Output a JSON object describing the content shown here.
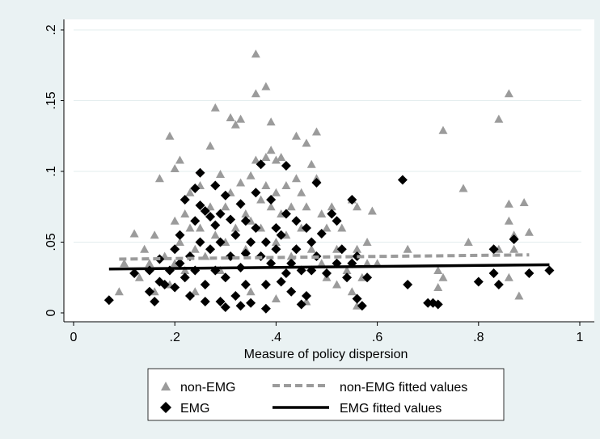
{
  "chart_data": {
    "type": "scatter",
    "xlabel": "Measure of policy dispersion",
    "ylabel": "",
    "xlim": [
      0,
      1
    ],
    "ylim": [
      0,
      0.2
    ],
    "x_ticks": [
      {
        "value": 0,
        "label": "0"
      },
      {
        "value": 0.2,
        "label": ".2"
      },
      {
        "value": 0.4,
        "label": ".4"
      },
      {
        "value": 0.6,
        "label": ".6"
      },
      {
        "value": 0.8,
        "label": ".8"
      },
      {
        "value": 1,
        "label": "1"
      }
    ],
    "y_ticks": [
      {
        "value": 0,
        "label": "0"
      },
      {
        "value": 0.05,
        "label": ".05"
      },
      {
        "value": 0.1,
        "label": ".1"
      },
      {
        "value": 0.15,
        "label": ".15"
      },
      {
        "value": 0.2,
        "label": ".2"
      }
    ],
    "grid": "horizontal",
    "legend_position": "bottom",
    "colors": {
      "non_emg": "#9b9b9b",
      "emg": "#000000",
      "plot_bg": "#ffffff",
      "page_bg": "#eaf2f3",
      "grid": "#e3ecee"
    },
    "series": [
      {
        "name": "non-EMG",
        "kind": "points",
        "marker": "triangle",
        "points": [
          [
            0.1,
            0.035
          ],
          [
            0.09,
            0.015
          ],
          [
            0.12,
            0.056
          ],
          [
            0.13,
            0.025
          ],
          [
            0.14,
            0.045
          ],
          [
            0.15,
            0.035
          ],
          [
            0.16,
            0.055
          ],
          [
            0.16,
            0.015
          ],
          [
            0.17,
            0.095
          ],
          [
            0.18,
            0.04
          ],
          [
            0.19,
            0.125
          ],
          [
            0.19,
            0.02
          ],
          [
            0.2,
            0.065
          ],
          [
            0.2,
            0.102
          ],
          [
            0.2,
            0.035
          ],
          [
            0.21,
            0.108
          ],
          [
            0.21,
            0.05
          ],
          [
            0.22,
            0.07
          ],
          [
            0.22,
            0.03
          ],
          [
            0.23,
            0.06
          ],
          [
            0.23,
            0.085
          ],
          [
            0.24,
            0.045
          ],
          [
            0.24,
            0.015
          ],
          [
            0.25,
            0.09
          ],
          [
            0.25,
            0.06
          ],
          [
            0.26,
            0.04
          ],
          [
            0.27,
            0.118
          ],
          [
            0.27,
            0.075
          ],
          [
            0.28,
            0.145
          ],
          [
            0.28,
            0.055
          ],
          [
            0.29,
            0.098
          ],
          [
            0.29,
            0.03
          ],
          [
            0.3,
            0.075
          ],
          [
            0.3,
            0.05
          ],
          [
            0.31,
            0.138
          ],
          [
            0.31,
            0.085
          ],
          [
            0.32,
            0.06
          ],
          [
            0.32,
            0.133
          ],
          [
            0.33,
            0.137
          ],
          [
            0.33,
            0.092
          ],
          [
            0.34,
            0.07
          ],
          [
            0.34,
            0.045
          ],
          [
            0.35,
            0.097
          ],
          [
            0.35,
            0.065
          ],
          [
            0.36,
            0.155
          ],
          [
            0.36,
            0.183
          ],
          [
            0.36,
            0.108
          ],
          [
            0.37,
            0.08
          ],
          [
            0.37,
            0.06
          ],
          [
            0.38,
            0.16
          ],
          [
            0.38,
            0.11
          ],
          [
            0.38,
            0.09
          ],
          [
            0.39,
            0.135
          ],
          [
            0.39,
            0.115
          ],
          [
            0.39,
            0.075
          ],
          [
            0.4,
            0.108
          ],
          [
            0.4,
            0.085
          ],
          [
            0.4,
            0.05
          ],
          [
            0.41,
            0.11
          ],
          [
            0.41,
            0.07
          ],
          [
            0.42,
            0.09
          ],
          [
            0.42,
            0.055
          ],
          [
            0.43,
            0.075
          ],
          [
            0.43,
            0.04
          ],
          [
            0.44,
            0.125
          ],
          [
            0.44,
            0.095
          ],
          [
            0.45,
            0.085
          ],
          [
            0.45,
            0.06
          ],
          [
            0.46,
            0.12
          ],
          [
            0.46,
            0.075
          ],
          [
            0.47,
            0.105
          ],
          [
            0.47,
            0.045
          ],
          [
            0.48,
            0.128
          ],
          [
            0.48,
            0.095
          ],
          [
            0.49,
            0.07
          ],
          [
            0.49,
            0.035
          ],
          [
            0.5,
            0.06
          ],
          [
            0.5,
            0.025
          ],
          [
            0.51,
            0.075
          ],
          [
            0.52,
            0.045
          ],
          [
            0.52,
            0.02
          ],
          [
            0.53,
            0.06
          ],
          [
            0.54,
            0.03
          ],
          [
            0.55,
            0.08
          ],
          [
            0.55,
            0.015
          ],
          [
            0.56,
            0.075
          ],
          [
            0.56,
            0.045
          ],
          [
            0.57,
            0.025
          ],
          [
            0.58,
            0.05
          ],
          [
            0.58,
            0.035
          ],
          [
            0.59,
            0.072
          ],
          [
            0.6,
            0.035
          ],
          [
            0.66,
            0.045
          ],
          [
            0.72,
            0.03
          ],
          [
            0.72,
            0.018
          ],
          [
            0.73,
            0.129
          ],
          [
            0.73,
            0.025
          ],
          [
            0.77,
            0.088
          ],
          [
            0.78,
            0.05
          ],
          [
            0.84,
            0.137
          ],
          [
            0.84,
            0.045
          ],
          [
            0.86,
            0.155
          ],
          [
            0.86,
            0.065
          ],
          [
            0.86,
            0.077
          ],
          [
            0.86,
            0.025
          ],
          [
            0.87,
            0.055
          ],
          [
            0.87,
            0.045
          ],
          [
            0.88,
            0.012
          ],
          [
            0.89,
            0.078
          ],
          [
            0.9,
            0.057
          ],
          [
            0.56,
            0.005
          ],
          [
            0.4,
            0.01
          ],
          [
            0.35,
            0.015
          ],
          [
            0.46,
            0.008
          ]
        ]
      },
      {
        "name": "EMG",
        "kind": "points",
        "marker": "diamond",
        "points": [
          [
            0.07,
            0.009
          ],
          [
            0.12,
            0.028
          ],
          [
            0.15,
            0.015
          ],
          [
            0.15,
            0.03
          ],
          [
            0.16,
            0.008
          ],
          [
            0.17,
            0.022
          ],
          [
            0.17,
            0.038
          ],
          [
            0.18,
            0.02
          ],
          [
            0.19,
            0.03
          ],
          [
            0.2,
            0.045
          ],
          [
            0.2,
            0.018
          ],
          [
            0.21,
            0.035
          ],
          [
            0.21,
            0.055
          ],
          [
            0.22,
            0.025
          ],
          [
            0.22,
            0.08
          ],
          [
            0.23,
            0.04
          ],
          [
            0.23,
            0.012
          ],
          [
            0.24,
            0.065
          ],
          [
            0.24,
            0.088
          ],
          [
            0.24,
            0.03
          ],
          [
            0.25,
            0.099
          ],
          [
            0.25,
            0.076
          ],
          [
            0.25,
            0.05
          ],
          [
            0.26,
            0.072
          ],
          [
            0.26,
            0.02
          ],
          [
            0.27,
            0.068
          ],
          [
            0.27,
            0.045
          ],
          [
            0.28,
            0.09
          ],
          [
            0.28,
            0.03
          ],
          [
            0.29,
            0.07
          ],
          [
            0.29,
            0.008
          ],
          [
            0.29,
            0.05
          ],
          [
            0.3,
            0.083
          ],
          [
            0.3,
            0.025
          ],
          [
            0.31,
            0.066
          ],
          [
            0.31,
            0.04
          ],
          [
            0.32,
            0.055
          ],
          [
            0.32,
            0.012
          ],
          [
            0.33,
            0.077
          ],
          [
            0.33,
            0.032
          ],
          [
            0.34,
            0.065
          ],
          [
            0.34,
            0.02
          ],
          [
            0.35,
            0.05
          ],
          [
            0.35,
            0.007
          ],
          [
            0.36,
            0.085
          ],
          [
            0.36,
            0.06
          ],
          [
            0.37,
            0.105
          ],
          [
            0.37,
            0.04
          ],
          [
            0.38,
            0.05
          ],
          [
            0.38,
            0.02
          ],
          [
            0.39,
            0.08
          ],
          [
            0.39,
            0.035
          ],
          [
            0.4,
            0.06
          ],
          [
            0.4,
            0.045
          ],
          [
            0.41,
            0.022
          ],
          [
            0.41,
            0.055
          ],
          [
            0.42,
            0.104
          ],
          [
            0.42,
            0.07
          ],
          [
            0.43,
            0.035
          ],
          [
            0.43,
            0.015
          ],
          [
            0.44,
            0.065
          ],
          [
            0.44,
            0.045
          ],
          [
            0.45,
            0.03
          ],
          [
            0.46,
            0.06
          ],
          [
            0.46,
            0.012
          ],
          [
            0.47,
            0.05
          ],
          [
            0.47,
            0.03
          ],
          [
            0.48,
            0.092
          ],
          [
            0.48,
            0.04
          ],
          [
            0.49,
            0.056
          ],
          [
            0.5,
            0.028
          ],
          [
            0.51,
            0.07
          ],
          [
            0.52,
            0.065
          ],
          [
            0.52,
            0.035
          ],
          [
            0.53,
            0.045
          ],
          [
            0.54,
            0.025
          ],
          [
            0.55,
            0.08
          ],
          [
            0.55,
            0.035
          ],
          [
            0.56,
            0.01
          ],
          [
            0.56,
            0.04
          ],
          [
            0.57,
            0.005
          ],
          [
            0.58,
            0.025
          ],
          [
            0.65,
            0.094
          ],
          [
            0.66,
            0.02
          ],
          [
            0.7,
            0.007
          ],
          [
            0.71,
            0.007
          ],
          [
            0.72,
            0.006
          ],
          [
            0.8,
            0.022
          ],
          [
            0.83,
            0.028
          ],
          [
            0.83,
            0.045
          ],
          [
            0.84,
            0.02
          ],
          [
            0.87,
            0.052
          ],
          [
            0.9,
            0.028
          ],
          [
            0.94,
            0.03
          ],
          [
            0.33,
            0.005
          ],
          [
            0.3,
            0.004
          ],
          [
            0.38,
            0.003
          ],
          [
            0.26,
            0.008
          ],
          [
            0.45,
            0.006
          ],
          [
            0.34,
            0.042
          ],
          [
            0.28,
            0.062
          ],
          [
            0.42,
            0.028
          ]
        ]
      },
      {
        "name": "non-EMG fitted values",
        "kind": "line",
        "style": "dashed",
        "points": [
          [
            0.09,
            0.038
          ],
          [
            0.9,
            0.041
          ]
        ]
      },
      {
        "name": "EMG fitted values",
        "kind": "line",
        "style": "solid",
        "points": [
          [
            0.07,
            0.031
          ],
          [
            0.94,
            0.034
          ]
        ]
      }
    ]
  }
}
